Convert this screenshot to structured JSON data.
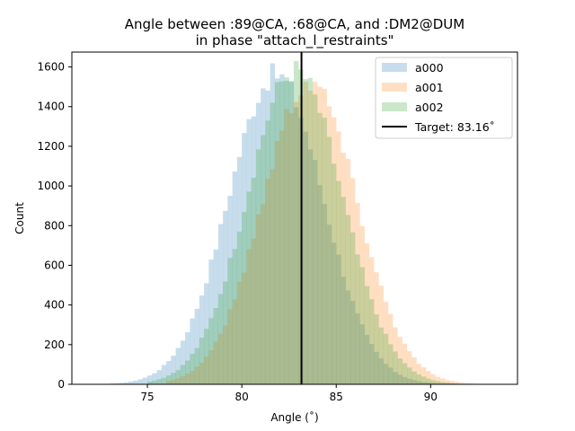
{
  "chart_data": {
    "type": "histogram",
    "title": [
      "Angle between :89@CA, :68@CA, and :DM2@DUM",
      "in phase \"attach_l_restraints\""
    ],
    "xlabel": "Angle (˚)",
    "ylabel": "Count",
    "xlim": [
      71.0,
      94.6
    ],
    "ylim": [
      0,
      1675
    ],
    "xticks": [
      "75",
      "80",
      "85",
      "90"
    ],
    "xtick_values": [
      75,
      80,
      85,
      90
    ],
    "yticks": [
      "0",
      "200",
      "400",
      "600",
      "800",
      "1000",
      "1200",
      "1400",
      "1600"
    ],
    "ytick_values": [
      0,
      200,
      400,
      600,
      800,
      1000,
      1200,
      1400,
      1600
    ],
    "bin_width": 0.25,
    "series": [
      {
        "name": "a000",
        "color": "#1f77b4",
        "opacity": 0.25,
        "mean": 81.8,
        "sd": 2.5,
        "peak": 1560,
        "x_min": 73.0,
        "x_max": 91.0
      },
      {
        "name": "a001",
        "color": "#ff7f0e",
        "opacity": 0.25,
        "mean": 83.6,
        "sd": 2.5,
        "peak": 1530,
        "x_min": 76.0,
        "x_max": 92.3
      },
      {
        "name": "a002",
        "color": "#2ca02c",
        "opacity": 0.25,
        "mean": 82.8,
        "sd": 2.5,
        "peak": 1580,
        "x_min": 75.0,
        "x_max": 91.5
      }
    ],
    "target_line": {
      "label": "Target: 83.16˚",
      "x": 83.16,
      "color": "#000000"
    },
    "legend_position": "top-right",
    "grid": false
  }
}
